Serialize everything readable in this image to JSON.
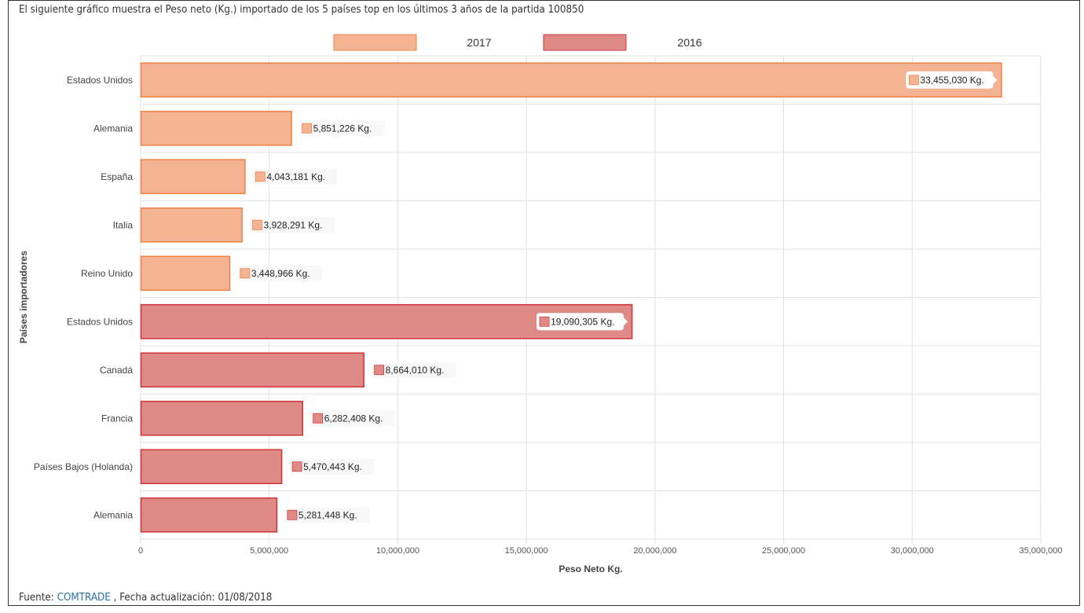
{
  "intro_text": "El siguiente gráfico muestra el Peso neto (Kg.) importado de los 5 países top en los últimos 3 años de la partida 100850",
  "footer": {
    "prefix": "Fuente: ",
    "source_link": "COMTRADE",
    "suffix": " , Fecha actualización: 01/08/2018"
  },
  "colors": {
    "s2017_fill": "#f4b393",
    "s2017_stroke": "#ee8649",
    "s2016_fill": "#e08a88",
    "s2016_stroke": "#cf3b3d",
    "grid": "#e2e2e2",
    "text": "#444444"
  },
  "chart_data": {
    "type": "bar",
    "orientation": "horizontal",
    "xlabel": "Peso Neto Kg.",
    "ylabel": "Países importadores",
    "xlim": [
      0,
      35000000
    ],
    "xticks": [
      0,
      5000000,
      10000000,
      15000000,
      20000000,
      25000000,
      30000000,
      35000000
    ],
    "xtick_labels": [
      "0",
      "5,000,000",
      "10,000,000",
      "15,000,000",
      "20,000,000",
      "25,000,000",
      "30,000,000",
      "35,000,000"
    ],
    "grid": true,
    "legend_position": "top",
    "series": [
      {
        "name": "2017",
        "categories": [
          "Estados Unidos",
          "Alemania",
          "España",
          "Italia",
          "Reino Unido"
        ],
        "values": [
          33455030,
          5851226,
          4043181,
          3928291,
          3448966
        ],
        "labels": [
          "33,455,030 Kg.",
          "5,851,226 Kg.",
          "4,043,181 Kg.",
          "3,928,291 Kg.",
          "3,448,966 Kg."
        ]
      },
      {
        "name": "2016",
        "categories": [
          "Estados Unidos",
          "Canadá",
          "Francia",
          "Países Bajos (Holanda)",
          "Alemania"
        ],
        "values": [
          19090305,
          8664010,
          6282408,
          5470443,
          5281448
        ],
        "labels": [
          "19,090,305 Kg.",
          "8,664,010 Kg.",
          "6,282,408 Kg.",
          "5,470,443 Kg.",
          "5,281,448 Kg."
        ]
      }
    ]
  }
}
